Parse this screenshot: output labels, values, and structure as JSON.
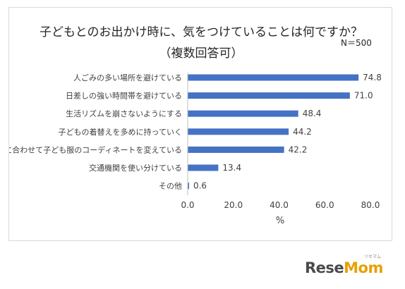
{
  "chart_data": {
    "type": "bar",
    "orientation": "horizontal",
    "title": [
      "子どもとのお出かけ時に、気をつけていることは何ですか？",
      "（複数回答可）"
    ],
    "note": "N＝500",
    "categories": [
      "人ごみの多い場所を避けている",
      "日差しの強い時間帯を避けている",
      "生活リズムを崩さないようにする",
      "子どもの着替えを多めに持っていく",
      "気温に合わせて子ども服のコーディネートを変えている",
      "交通機関を使い分けている",
      "その他"
    ],
    "values": [
      74.8,
      71.0,
      48.4,
      44.2,
      42.2,
      13.4,
      0.6
    ],
    "value_labels": [
      "74.8",
      "71.0",
      "48.4",
      "44.2",
      "42.2",
      "13.4",
      "0.6"
    ],
    "xlim": [
      0,
      80
    ],
    "xticks": [
      0,
      20,
      40,
      60,
      80
    ],
    "xtick_labels": [
      "0.0",
      "20.0",
      "40.0",
      "60.0",
      "80.0"
    ],
    "xlabel": "%",
    "ylabel": "",
    "bar_color": "#4472c4",
    "grid": false
  },
  "watermark": {
    "brand_main": "Rese",
    "brand_accent": "Mom",
    "kana": "リセマム"
  }
}
